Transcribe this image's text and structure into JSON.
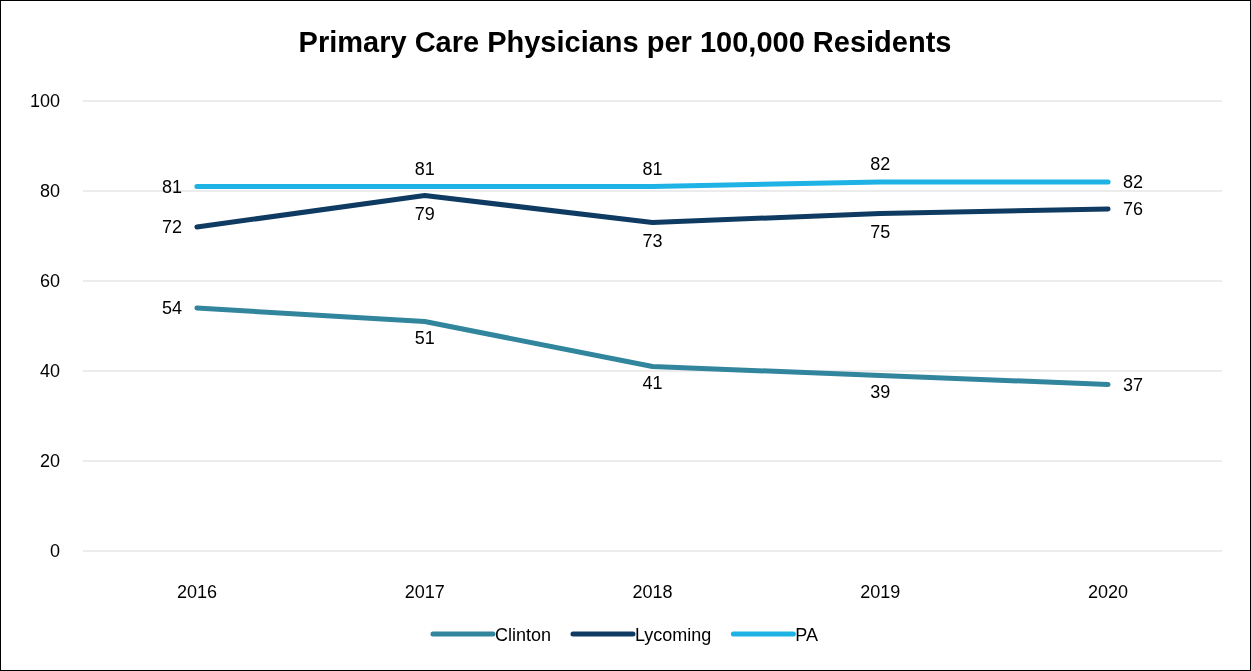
{
  "chart_data": {
    "type": "line",
    "title": "Primary Care Physicians per 100,000 Residents",
    "categories": [
      "2016",
      "2017",
      "2018",
      "2019",
      "2020"
    ],
    "series": [
      {
        "name": "Clinton",
        "color": "#31859c",
        "values": [
          54,
          51,
          41,
          39,
          37
        ]
      },
      {
        "name": "Lycoming",
        "color": "#0f3b62",
        "values": [
          72,
          79,
          73,
          75,
          76
        ]
      },
      {
        "name": "PA",
        "color": "#1fb3e5",
        "values": [
          81,
          81,
          81,
          82,
          82
        ]
      }
    ],
    "ylim": [
      0,
      100
    ],
    "yticks": [
      0,
      20,
      40,
      60,
      80,
      100
    ],
    "grid": "y",
    "legend": "bottom",
    "data_labels": true,
    "marker": "none",
    "line_style": "solid"
  }
}
